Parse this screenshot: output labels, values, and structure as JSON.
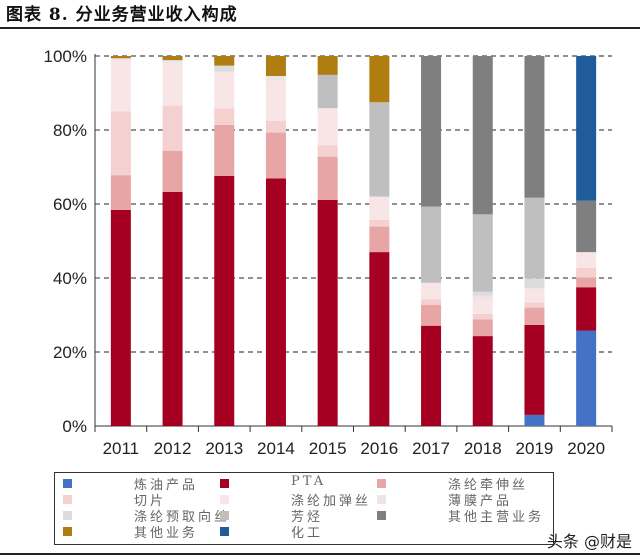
{
  "title": "图表 8. 分业务营业收入构成",
  "watermark": "头条 @财是",
  "chart_data": {
    "type": "bar",
    "stacked": true,
    "categories": [
      "2011",
      "2012",
      "2013",
      "2014",
      "2015",
      "2016",
      "2017",
      "2018",
      "2019",
      "2020"
    ],
    "ylim": [
      0,
      100
    ],
    "yticks": [
      "0%",
      "20%",
      "40%",
      "60%",
      "80%",
      "100%"
    ],
    "grid": "dashed horizontal",
    "legend_position": "bottom",
    "series": [
      {
        "name": "炼油产品",
        "color": "#4472C4",
        "values": [
          0,
          0,
          0,
          0,
          0,
          0,
          0,
          0,
          3.0,
          25.8
        ]
      },
      {
        "name": "PTA",
        "color": "#A50021",
        "values": [
          58.4,
          63.3,
          67.6,
          66.9,
          61.1,
          47.0,
          27.1,
          24.3,
          24.3,
          11.7
        ]
      },
      {
        "name": "涤纶牵伸丝",
        "color": "#E8A5A5",
        "values": [
          9.4,
          11.1,
          13.8,
          12.4,
          11.7,
          6.9,
          5.6,
          4.5,
          4.7,
          2.7
        ]
      },
      {
        "name": "切片",
        "color": "#F4D0D0",
        "values": [
          17.2,
          12.2,
          4.5,
          3.2,
          3.1,
          1.8,
          1.5,
          1.5,
          1.4,
          2.6
        ]
      },
      {
        "name": "涤纶加弹丝",
        "color": "#F8E6E6",
        "values": [
          13.9,
          11.6,
          9.9,
          10.8,
          10.0,
          6.3,
          4.5,
          3.9,
          3.8,
          4.2
        ]
      },
      {
        "name": "薄膜产品",
        "color": "#EDE4E8",
        "values": [
          0.5,
          0.4,
          0,
          1.3,
          0,
          0,
          0,
          1.0,
          0,
          0
        ]
      },
      {
        "name": "涤纶预取向丝",
        "color": "#DCDCDF",
        "values": [
          0,
          0.3,
          1.6,
          0,
          0,
          0,
          0,
          1.1,
          2.7,
          0
        ]
      },
      {
        "name": "芳烃",
        "color": "#BFBFBF",
        "values": [
          0,
          0,
          0,
          0,
          9.0,
          25.5,
          20.6,
          20.9,
          21.8,
          0
        ]
      },
      {
        "name": "其他主营业务",
        "color": "#7F7F7F",
        "values": [
          0,
          0,
          0,
          0,
          0,
          0,
          40.7,
          42.8,
          38.3,
          13.9
        ]
      },
      {
        "name": "其他业务",
        "color": "#B07D10",
        "values": [
          0.6,
          1.1,
          2.6,
          5.4,
          5.1,
          12.5,
          0,
          0,
          0,
          0
        ]
      },
      {
        "name": "化工",
        "color": "#1F5C99",
        "values": [
          0,
          0,
          0,
          0,
          0,
          0,
          0,
          0,
          0,
          39.1
        ]
      }
    ]
  }
}
